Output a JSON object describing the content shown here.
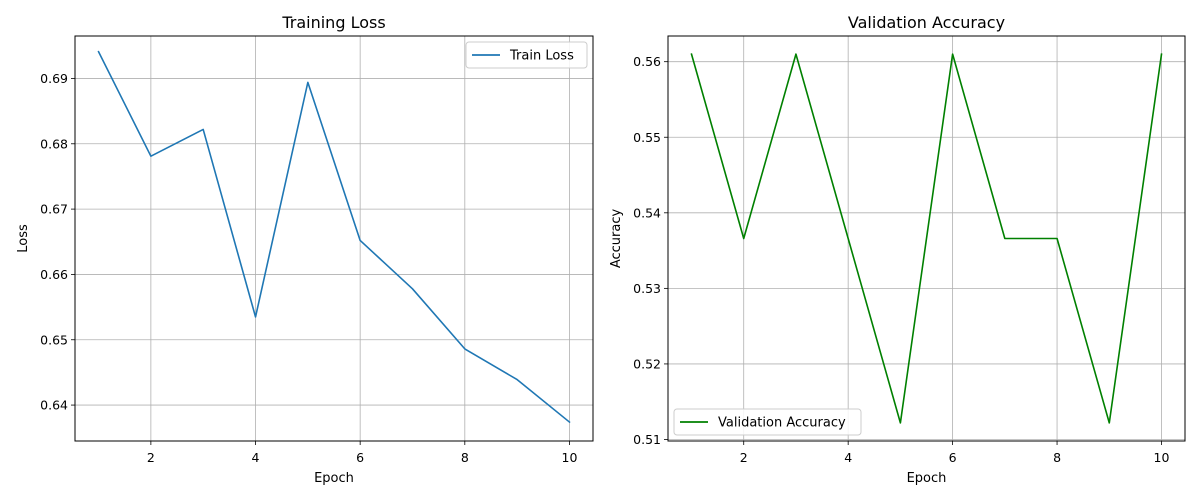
{
  "chart_data": [
    {
      "type": "line",
      "title": "Training Loss",
      "xlabel": "Epoch",
      "ylabel": "Loss",
      "xlim": [
        0.55,
        10.45
      ],
      "ylim": [
        0.6345,
        0.6965
      ],
      "xticks": [
        2,
        4,
        6,
        8,
        10
      ],
      "yticks": [
        0.64,
        0.65,
        0.66,
        0.67,
        0.68,
        0.69
      ],
      "ytick_labels": [
        "0.64",
        "0.65",
        "0.66",
        "0.67",
        "0.68",
        "0.69"
      ],
      "grid": true,
      "legend_position": "upper right",
      "series": [
        {
          "name": "Train Loss",
          "color": "#1f77b4",
          "x": [
            1,
            2,
            3,
            4,
            5,
            6,
            7,
            8,
            9,
            10
          ],
          "y": [
            0.6941,
            0.6781,
            0.6822,
            0.6535,
            0.6894,
            0.6652,
            0.6578,
            0.6486,
            0.6439,
            0.6374
          ]
        }
      ]
    },
    {
      "type": "line",
      "title": "Validation Accuracy",
      "xlabel": "Epoch",
      "ylabel": "Accuracy",
      "xlim": [
        0.55,
        10.45
      ],
      "ylim": [
        0.5098,
        0.5634
      ],
      "xticks": [
        2,
        4,
        6,
        8,
        10
      ],
      "yticks": [
        0.51,
        0.52,
        0.53,
        0.54,
        0.55,
        0.56
      ],
      "ytick_labels": [
        "0.51",
        "0.52",
        "0.53",
        "0.54",
        "0.55",
        "0.56"
      ],
      "grid": true,
      "legend_position": "lower left",
      "series": [
        {
          "name": "Validation Accuracy",
          "color": "#008000",
          "x": [
            1,
            2,
            3,
            4,
            5,
            6,
            7,
            8,
            9,
            10
          ],
          "y": [
            0.561,
            0.5366,
            0.561,
            0.5366,
            0.5122,
            0.561,
            0.5366,
            0.5366,
            0.5122,
            0.561
          ]
        }
      ]
    }
  ]
}
